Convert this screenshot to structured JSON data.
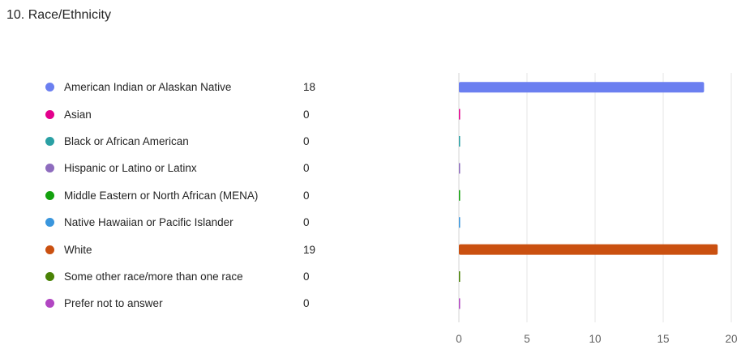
{
  "question": {
    "title": "10. Race/Ethnicity"
  },
  "chart_data": {
    "type": "bar",
    "orientation": "horizontal",
    "categories": [
      "American Indian or Alaskan Native",
      "Asian",
      "Black or African American",
      "Hispanic or Latino or Latinx",
      "Middle Eastern or North African (MENA)",
      "Native Hawaiian or Pacific Islander",
      "White",
      "Some other race/more than one race",
      "Prefer not to answer"
    ],
    "values": [
      18,
      0,
      0,
      0,
      0,
      0,
      19,
      0,
      0
    ],
    "colors": [
      "#6b7ff0",
      "#e3008c",
      "#2aa0a4",
      "#8e6cbe",
      "#13a10e",
      "#3a96dd",
      "#ca5010",
      "#498205",
      "#b146c2"
    ],
    "xlim": [
      0,
      20
    ],
    "xticks": [
      0,
      5,
      10,
      15,
      20
    ],
    "grid": true,
    "legend_position": "left"
  }
}
